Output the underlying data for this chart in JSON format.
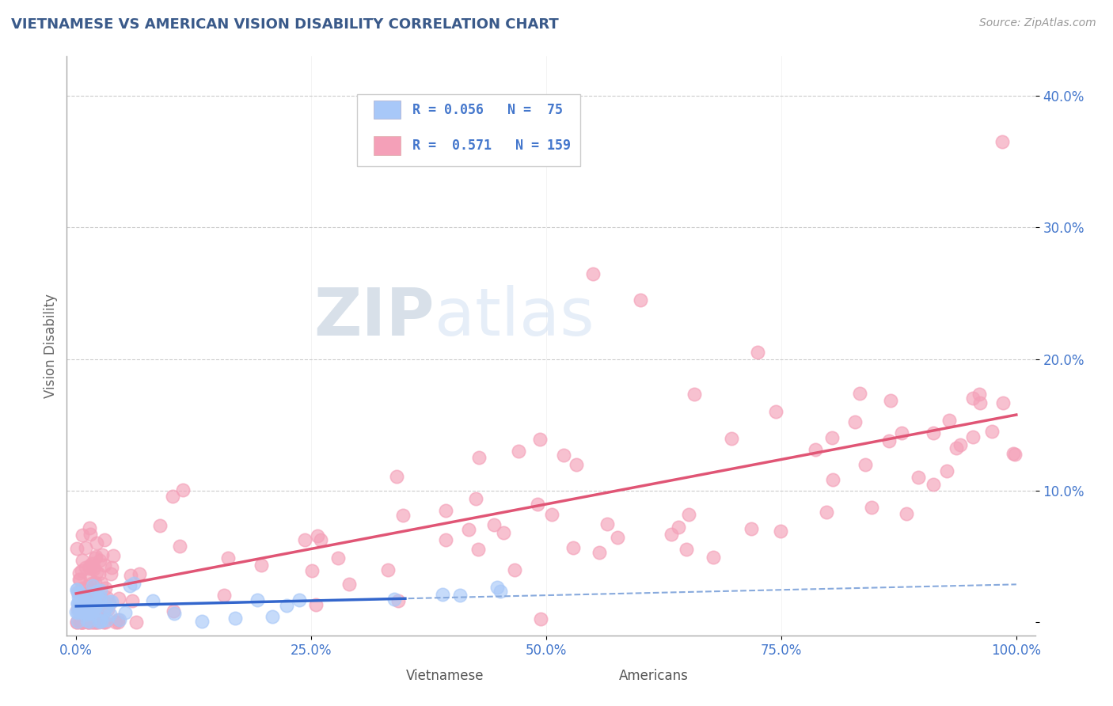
{
  "title": "VIETNAMESE VS AMERICAN VISION DISABILITY CORRELATION CHART",
  "source": "Source: ZipAtlas.com",
  "ylabel": "Vision Disability",
  "xlim": [
    -0.01,
    1.02
  ],
  "ylim": [
    -0.01,
    0.43
  ],
  "yticks": [
    0.0,
    0.1,
    0.2,
    0.3,
    0.4
  ],
  "ytick_labels": [
    "",
    "10.0%",
    "20.0%",
    "30.0%",
    "40.0%"
  ],
  "xticks": [
    0.0,
    0.25,
    0.5,
    0.75,
    1.0
  ],
  "xtick_labels": [
    "0.0%",
    "25.0%",
    "50.0%",
    "75.0%",
    "100.0%"
  ],
  "color_vietnamese": "#a8c8f8",
  "color_americans": "#f4a0b8",
  "trend_color_vietnamese_solid": "#3366cc",
  "trend_color_vietnamese_dashed": "#88aadd",
  "trend_color_americans": "#e05575",
  "title_color": "#3a5a8a",
  "axis_color": "#aaaaaa",
  "grid_color": "#cccccc",
  "legend_text_color": "#4477cc",
  "watermark_color": "#d8e8f4",
  "legend_r1": "R = 0.056",
  "legend_n1": "N =  75",
  "legend_r2": "R =  0.571",
  "legend_n2": "N = 159"
}
